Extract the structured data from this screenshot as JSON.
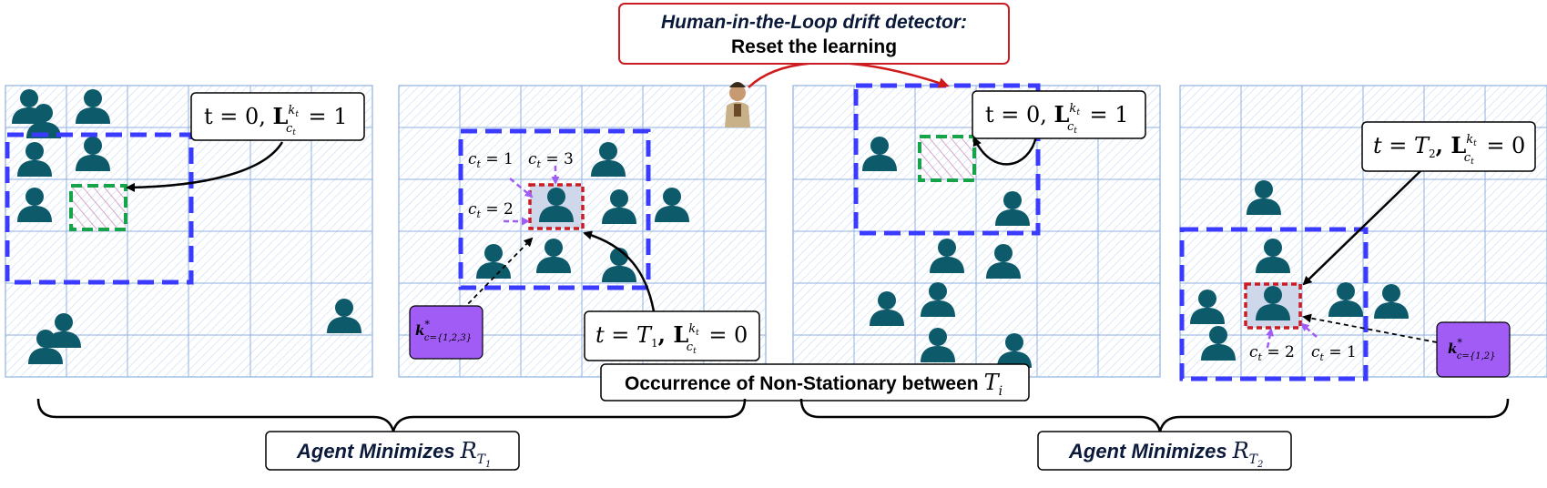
{
  "colors": {
    "grid_line": "#8fb2e0",
    "grid_hatch": "#c8d9f2",
    "person": "#0d5a6b",
    "blue_dash": "#3b3bff",
    "green_dash": "#17a34a",
    "red_dash": "#c81d25",
    "purple": "#a05cf5",
    "purple_fill": "#a05cf5",
    "red_arrow": "#d01a1a",
    "text_dark": "#0b1a3a"
  },
  "top_callout": {
    "line1": "Human-in-the-Loop drift detector:",
    "line2": "Reset the learning"
  },
  "panel1": {
    "label_t": "t = 0, ",
    "label_L": "L",
    "label_sup": "k",
    "label_sup_sub": "t",
    "label_sub": "c",
    "label_sub_sub": "t",
    "label_eq": " = 1"
  },
  "panel2": {
    "c1": "c",
    "c1_sub": "t",
    "c1_val": " = 1",
    "c2": "c",
    "c2_sub": "t",
    "c2_val": " = 2",
    "c3": "c",
    "c3_sub": "t",
    "c3_val": " = 3",
    "label_t": "t = ",
    "label_T": "T",
    "label_T_sub": "1",
    "label_L": ", L",
    "label_sup": "k",
    "label_sup_sub": "t",
    "label_sub": "c",
    "label_sub_sub": "t",
    "label_eq": " = 0",
    "kbox_k": "k",
    "kbox_star": "*",
    "kbox_sub": "c={1,2,3}"
  },
  "panel3": {
    "label_t": "t = 0, ",
    "label_L": "L",
    "label_sup": "k",
    "label_sup_sub": "t",
    "label_sub": "c",
    "label_sub_sub": "t",
    "label_eq": " = 1"
  },
  "panel4": {
    "label_t": "t = ",
    "label_T": "T",
    "label_T_sub": "2",
    "label_L": ", L",
    "label_sup": "k",
    "label_sup_sub": "t",
    "label_sub": "c",
    "label_sub_sub": "t",
    "label_eq": " = 0",
    "c2": "c",
    "c2_sub": "t",
    "c2_val": " = 2",
    "c1": "c",
    "c1_sub": "t",
    "c1_val": " = 1",
    "kbox_k": "k",
    "kbox_star": "*",
    "kbox_sub": "c={1,2}"
  },
  "nonstationary": {
    "text": "Occurrence of Non-Stationary between",
    "T": "T",
    "T_sub": "i"
  },
  "agent1": {
    "text": "Agent Minimizes",
    "R": "R",
    "R_sub": "T",
    "R_sub_sub": "1"
  },
  "agent2": {
    "text": "Agent Minimizes",
    "R": "R",
    "R_sub": "T",
    "R_sub_sub": "2"
  }
}
